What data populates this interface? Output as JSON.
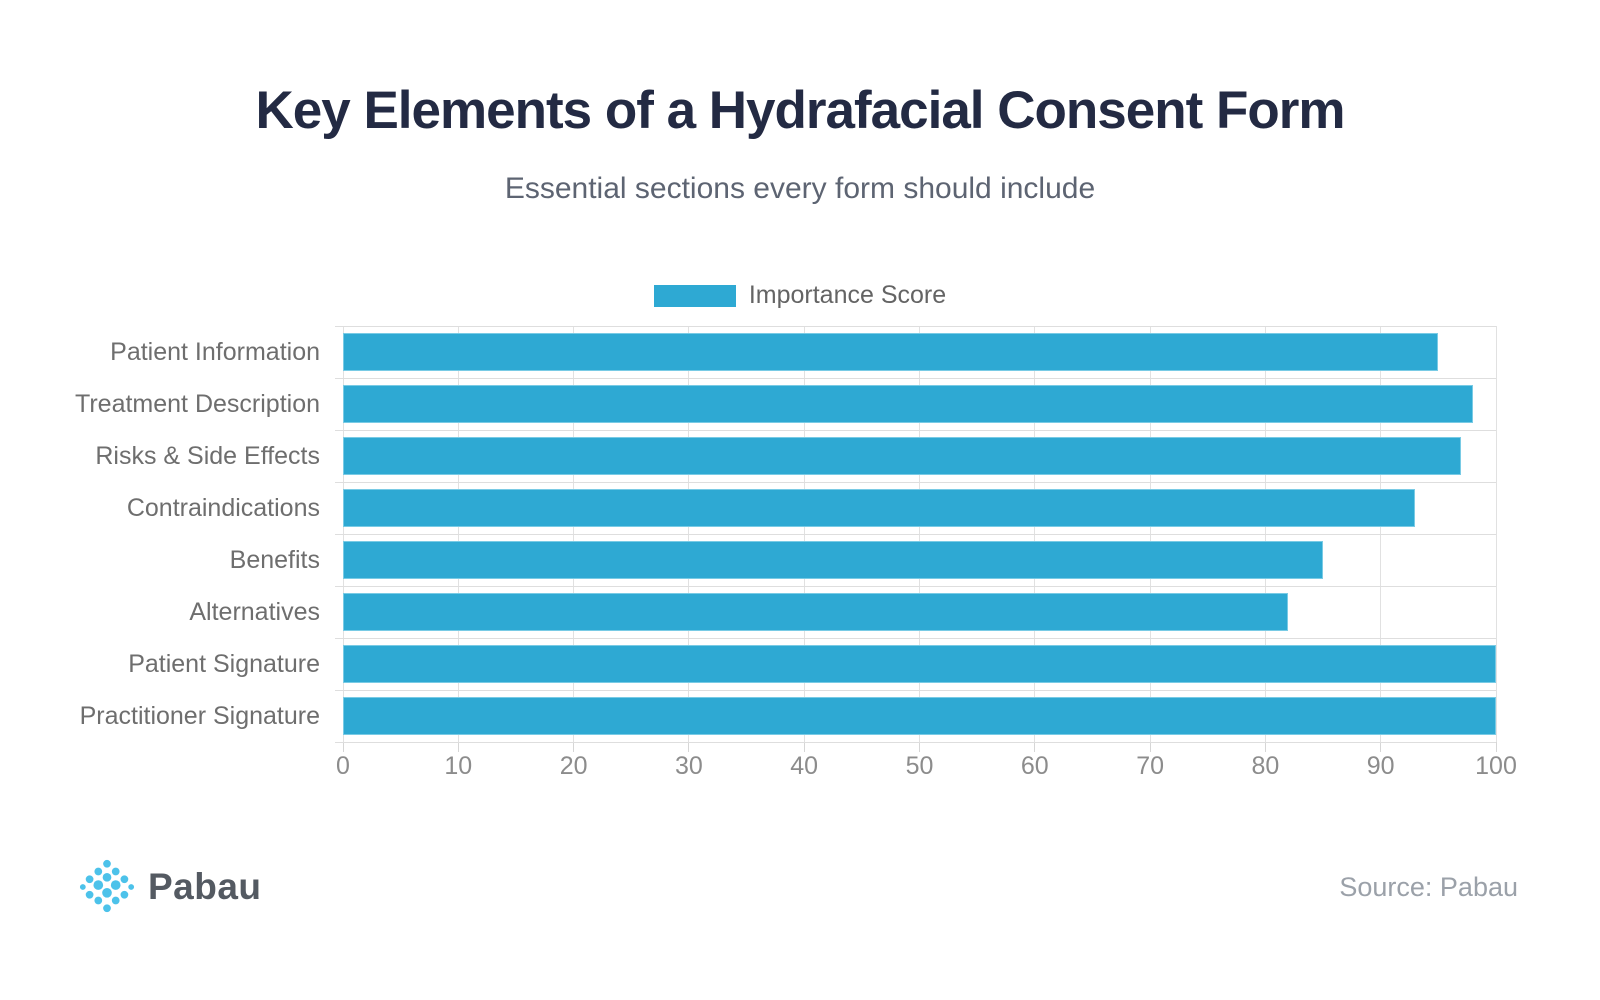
{
  "title": "Key Elements of a Hydrafacial Consent Form",
  "subtitle": "Essential sections every form should include",
  "legend": {
    "label": "Importance Score"
  },
  "chart_data": {
    "type": "bar",
    "orientation": "horizontal",
    "title": "Key Elements of a Hydrafacial Consent Form",
    "subtitle": "Essential sections every form should include",
    "categories": [
      "Patient Information",
      "Treatment Description",
      "Risks & Side Effects",
      "Contraindications",
      "Benefits",
      "Alternatives",
      "Patient Signature",
      "Practitioner Signature"
    ],
    "series": [
      {
        "name": "Importance Score",
        "values": [
          95,
          98,
          97,
          93,
          85,
          82,
          100,
          100
        ]
      }
    ],
    "xlim": [
      0,
      100
    ],
    "x_ticks": [
      0,
      10,
      20,
      30,
      40,
      50,
      60,
      70,
      80,
      90,
      100
    ],
    "grid": true,
    "legend_position": "top"
  },
  "footer": {
    "brand": "Pabau",
    "source": "Source: Pabau"
  },
  "colors": {
    "bar": "#2ea9d3",
    "bar_border": "#79cbe5",
    "grid": "#e1e1e1",
    "title": "#232a43",
    "subtitle": "#5d6472",
    "axis_label": "#8c8c8c",
    "category_label": "#6e6e6e",
    "legend_label": "#646464",
    "source_text": "#9ba1a9",
    "brand_text": "#545a62",
    "logo_dot": "#4cc2ea"
  }
}
